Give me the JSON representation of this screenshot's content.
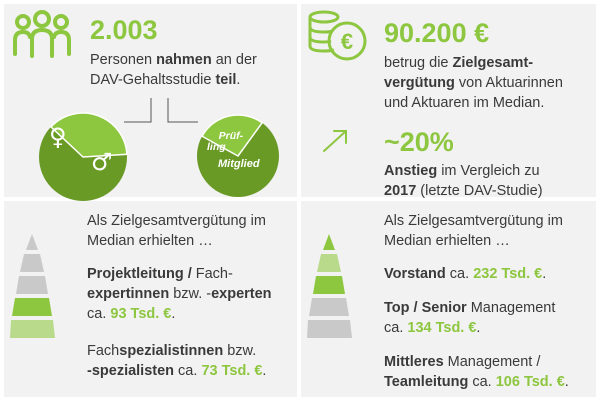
{
  "top_left": {
    "icon": "people-group-icon",
    "count": "2.003",
    "line1_pre": "Personen ",
    "line1_bold": "nahmen",
    "line1_post": " an der",
    "line2_pre": "DAV-Gehaltsstudie ",
    "line2_bold": "teil",
    "line2_post": ".",
    "gender_symbols": {
      "female": "♀",
      "male": "♂"
    },
    "gender_share_female_estimate": 0.37,
    "status_labels": {
      "pruefling": "Prüf-\nling",
      "mitglied": "Mitglied"
    },
    "pruefling_share_estimate": 0.17
  },
  "top_right": {
    "icon": "coins-euro-icon",
    "amount": "90.200 €",
    "amount_l1_pre": "betrug die ",
    "amount_l1_bold": "Zielgesamt-",
    "amount_l2_bold": "vergütung",
    "amount_l2_post": " von Aktuarinnen",
    "amount_l3": "und Aktuaren im Median.",
    "trend_icon": "arrow-up-right-icon",
    "increase": "~20%",
    "inc_l1_bold": "Anstieg",
    "inc_l1_post": " im Vergleich zu",
    "inc_l2_bold": "2017",
    "inc_l2_post": " (letzte DAV-Studie)"
  },
  "bottom_left": {
    "intro_l1": "Als Zielgesamtvergütung im",
    "intro_l2": "Median erhielten …",
    "item1_l1_bold": "Projektleitung / ",
    "item1_l1_post": "Fach-",
    "item1_l2_bold": "expertinnen",
    "item1_l2_post": " bzw. -",
    "item1_l2_bold2": "experten",
    "item1_l3_pre": "ca. ",
    "item1_value": "93 Tsd. €",
    "item1_l3_post": ".",
    "item2_l1_pre": "Fach",
    "item2_l1_bold": "spezialistinnen",
    "item2_l1_post": " bzw.",
    "item2_l2_bold": "-spezialisten",
    "item2_l2_mid": " ca. ",
    "item2_value": "73 Tsd. €",
    "item2_l2_post": "."
  },
  "bottom_right": {
    "intro_l1": "Als Zielgesamtvergütung im",
    "intro_l2": "Median erhielten …",
    "item1_bold": "Vorstand",
    "item1_mid": " ca. ",
    "item1_value": "232 Tsd. €",
    "item1_post": ".",
    "item2_bold": "Top / Senior",
    "item2_post": " Management",
    "item2_l2_pre": "ca. ",
    "item2_value": "134 Tsd. €",
    "item2_l2_post": ".",
    "item3_bold": "Mittleres",
    "item3_post": " Management /",
    "item3_l2_bold": "Teamleitung",
    "item3_l2_mid": " ca. ",
    "item3_value": "106 Tsd. €",
    "item3_l2_post": "."
  },
  "colors": {
    "green": "#8dc63f",
    "dark_green": "#6a9a26",
    "light_green": "#b9d98b",
    "gray": "#c9c9c9",
    "panel": "#f2f2f2",
    "text": "#3a3a3a"
  }
}
